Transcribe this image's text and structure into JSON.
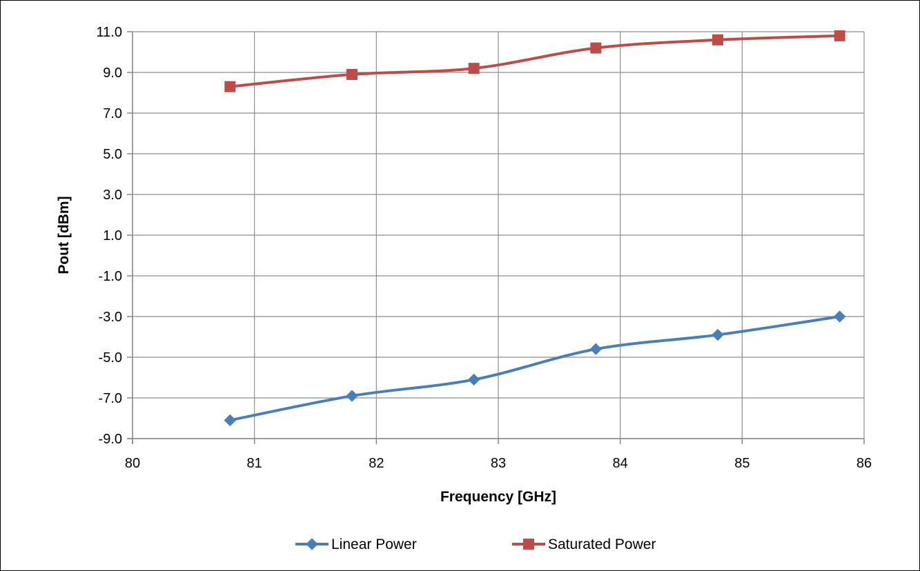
{
  "chart_data": {
    "type": "line",
    "xlabel": "Frequency [GHz]",
    "ylabel": "Pout [dBm]",
    "xlim": [
      80,
      86
    ],
    "ylim": [
      -9,
      11
    ],
    "x_ticks": [
      80,
      81,
      82,
      83,
      84,
      85,
      86
    ],
    "y_ticks": [
      -9,
      -7,
      -5,
      -3,
      -1,
      1,
      3,
      5,
      7,
      9,
      11
    ],
    "y_tick_labels": [
      "-9.0",
      "-7.0",
      "-5.0",
      "-3.0",
      "-1.0",
      "1.0",
      "3.0",
      "5.0",
      "7.0",
      "9.0",
      "11.0"
    ],
    "x_tick_labels": [
      "80",
      "81",
      "82",
      "83",
      "84",
      "85",
      "86"
    ],
    "grid": true,
    "legend_position": "bottom",
    "x": [
      80.8,
      81.8,
      82.8,
      83.8,
      84.8,
      85.8
    ],
    "series": [
      {
        "name": "Linear Power",
        "color": "#4a7ebb",
        "marker": "diamond",
        "values": [
          -8.1,
          -6.9,
          -6.1,
          -4.6,
          -3.9,
          -3.0
        ]
      },
      {
        "name": "Saturated Power",
        "color": "#be4b48",
        "marker": "square",
        "values": [
          8.3,
          8.9,
          9.2,
          10.2,
          10.6,
          10.8
        ]
      }
    ]
  }
}
